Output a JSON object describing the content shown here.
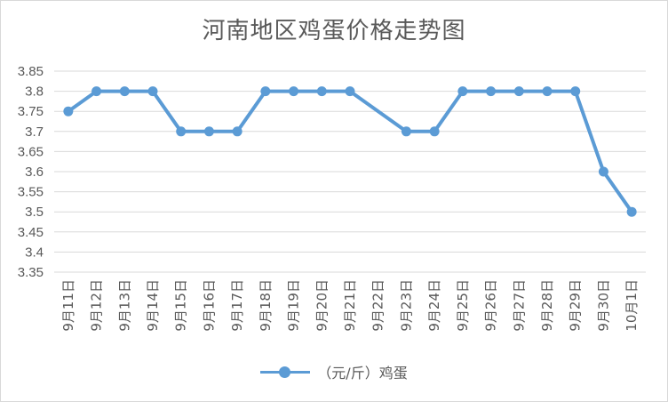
{
  "chart_data": {
    "type": "line",
    "title": "河南地区鸡蛋价格走势图",
    "categories": [
      "9月11日",
      "9月12日",
      "9月13日",
      "9月14日",
      "9月15日",
      "9月16日",
      "9月17日",
      "9月18日",
      "9月19日",
      "9月20日",
      "9月21日",
      "9月22日",
      "9月23日",
      "9月24日",
      "9月25日",
      "9月26日",
      "9月27日",
      "9月28日",
      "9月29日",
      "9月30日",
      "10月1日"
    ],
    "series": [
      {
        "name": "（元/斤）鸡蛋",
        "color": "#5b9bd5",
        "values": [
          3.75,
          3.8,
          3.8,
          3.8,
          3.7,
          3.7,
          3.7,
          3.8,
          3.8,
          3.8,
          3.8,
          null,
          3.7,
          3.7,
          3.8,
          3.8,
          3.8,
          3.8,
          3.8,
          3.6,
          3.5
        ]
      }
    ],
    "yticks": [
      "3.35",
      "3.4",
      "3.45",
      "3.5",
      "3.55",
      "3.6",
      "3.65",
      "3.7",
      "3.75",
      "3.8",
      "3.85"
    ],
    "ylim": [
      3.35,
      3.85
    ],
    "grid": true,
    "legend_position": "bottom"
  }
}
